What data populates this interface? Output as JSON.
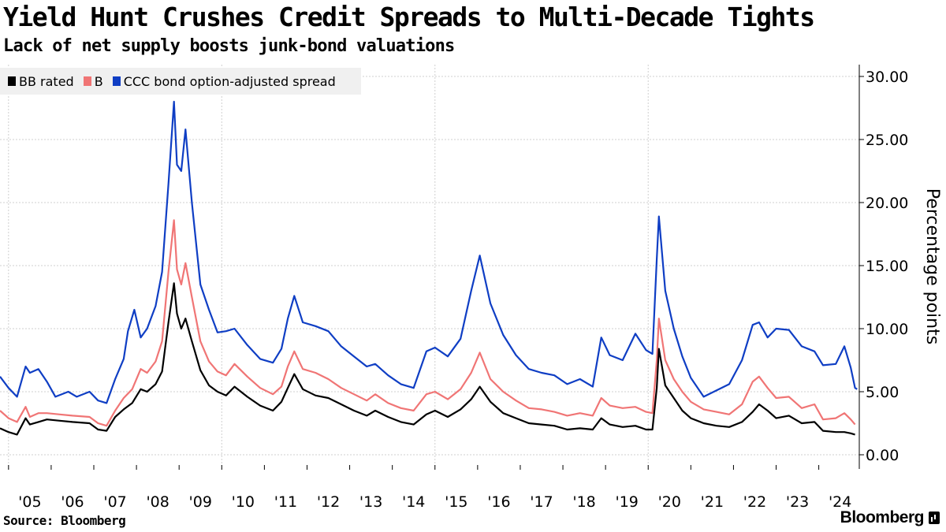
{
  "header": {
    "title": "Yield Hunt Crushes Credit Spreads to Multi-Decade Tights",
    "subtitle": "Lack of net supply boosts junk-bond valuations"
  },
  "footer": {
    "source": "Source: Bloomberg",
    "logo": "Bloomberg"
  },
  "chart_data": {
    "type": "line",
    "title": "Yield Hunt Crushes Credit Spreads to Multi-Decade Tights",
    "subtitle": "Lack of net supply boosts junk-bond valuations",
    "ylabel": "Percentage points",
    "xlabel": "",
    "ylim": [
      0,
      30
    ],
    "xlim": [
      2004.8,
      2024.95
    ],
    "yticks": [
      0,
      5,
      10,
      15,
      20,
      25,
      30
    ],
    "ytick_labels": [
      "0.00",
      "5.00",
      "10.00",
      "15.00",
      "20.00",
      "25.00",
      "30.00"
    ],
    "xtick_labels": [
      "'05",
      "'06",
      "'07",
      "'08",
      "'09",
      "'10",
      "'11",
      "'12",
      "'13",
      "'14",
      "'15",
      "'16",
      "'17",
      "'18",
      "'19",
      "'20",
      "'21",
      "'22",
      "'23",
      "'24"
    ],
    "grid": true,
    "legend_position": "top-left",
    "series": [
      {
        "name": "BB rated",
        "color": "#000000",
        "points": [
          [
            2004.8,
            2.1
          ],
          [
            2005.0,
            1.8
          ],
          [
            2005.2,
            1.6
          ],
          [
            2005.4,
            2.9
          ],
          [
            2005.5,
            2.4
          ],
          [
            2005.7,
            2.6
          ],
          [
            2005.9,
            2.8
          ],
          [
            2006.2,
            2.7
          ],
          [
            2006.5,
            2.6
          ],
          [
            2006.9,
            2.5
          ],
          [
            2007.1,
            2.0
          ],
          [
            2007.3,
            1.9
          ],
          [
            2007.5,
            3.0
          ],
          [
            2007.7,
            3.6
          ],
          [
            2007.9,
            4.1
          ],
          [
            2008.1,
            5.2
          ],
          [
            2008.25,
            5.0
          ],
          [
            2008.45,
            5.6
          ],
          [
            2008.6,
            6.6
          ],
          [
            2008.75,
            10.5
          ],
          [
            2008.88,
            13.6
          ],
          [
            2008.95,
            11.2
          ],
          [
            2009.05,
            10.0
          ],
          [
            2009.15,
            10.8
          ],
          [
            2009.3,
            9.0
          ],
          [
            2009.5,
            6.7
          ],
          [
            2009.7,
            5.5
          ],
          [
            2009.9,
            5.0
          ],
          [
            2010.1,
            4.7
          ],
          [
            2010.3,
            5.4
          ],
          [
            2010.6,
            4.6
          ],
          [
            2010.9,
            3.9
          ],
          [
            2011.2,
            3.5
          ],
          [
            2011.4,
            4.2
          ],
          [
            2011.55,
            5.3
          ],
          [
            2011.7,
            6.4
          ],
          [
            2011.9,
            5.2
          ],
          [
            2012.2,
            4.7
          ],
          [
            2012.5,
            4.5
          ],
          [
            2012.8,
            4.0
          ],
          [
            2013.1,
            3.5
          ],
          [
            2013.4,
            3.1
          ],
          [
            2013.6,
            3.5
          ],
          [
            2013.9,
            3.0
          ],
          [
            2014.2,
            2.6
          ],
          [
            2014.5,
            2.4
          ],
          [
            2014.8,
            3.2
          ],
          [
            2015.0,
            3.5
          ],
          [
            2015.3,
            3.0
          ],
          [
            2015.6,
            3.6
          ],
          [
            2015.85,
            4.4
          ],
          [
            2016.05,
            5.4
          ],
          [
            2016.3,
            4.2
          ],
          [
            2016.6,
            3.3
          ],
          [
            2016.9,
            2.9
          ],
          [
            2017.2,
            2.5
          ],
          [
            2017.5,
            2.4
          ],
          [
            2017.8,
            2.3
          ],
          [
            2018.1,
            2.0
          ],
          [
            2018.4,
            2.1
          ],
          [
            2018.7,
            2.0
          ],
          [
            2018.9,
            2.9
          ],
          [
            2019.1,
            2.4
          ],
          [
            2019.4,
            2.2
          ],
          [
            2019.7,
            2.3
          ],
          [
            2019.95,
            2.0
          ],
          [
            2020.1,
            2.0
          ],
          [
            2020.2,
            5.3
          ],
          [
            2020.25,
            8.4
          ],
          [
            2020.4,
            5.5
          ],
          [
            2020.6,
            4.5
          ],
          [
            2020.8,
            3.5
          ],
          [
            2021.0,
            2.9
          ],
          [
            2021.3,
            2.5
          ],
          [
            2021.6,
            2.3
          ],
          [
            2021.9,
            2.2
          ],
          [
            2022.2,
            2.6
          ],
          [
            2022.45,
            3.4
          ],
          [
            2022.6,
            4.0
          ],
          [
            2022.8,
            3.5
          ],
          [
            2023.0,
            2.9
          ],
          [
            2023.3,
            3.1
          ],
          [
            2023.6,
            2.5
          ],
          [
            2023.9,
            2.6
          ],
          [
            2024.1,
            1.9
          ],
          [
            2024.4,
            1.8
          ],
          [
            2024.6,
            1.8
          ],
          [
            2024.75,
            1.7
          ],
          [
            2024.85,
            1.6
          ]
        ]
      },
      {
        "name": "B",
        "color": "#f07575",
        "points": [
          [
            2004.8,
            3.5
          ],
          [
            2005.0,
            2.9
          ],
          [
            2005.2,
            2.6
          ],
          [
            2005.4,
            3.8
          ],
          [
            2005.5,
            3.0
          ],
          [
            2005.7,
            3.3
          ],
          [
            2005.9,
            3.3
          ],
          [
            2006.2,
            3.2
          ],
          [
            2006.5,
            3.1
          ],
          [
            2006.9,
            3.0
          ],
          [
            2007.1,
            2.5
          ],
          [
            2007.3,
            2.3
          ],
          [
            2007.5,
            3.5
          ],
          [
            2007.7,
            4.5
          ],
          [
            2007.9,
            5.2
          ],
          [
            2008.1,
            6.8
          ],
          [
            2008.25,
            6.5
          ],
          [
            2008.45,
            7.4
          ],
          [
            2008.6,
            9.0
          ],
          [
            2008.75,
            14.5
          ],
          [
            2008.88,
            18.6
          ],
          [
            2008.95,
            14.7
          ],
          [
            2009.05,
            13.5
          ],
          [
            2009.15,
            15.2
          ],
          [
            2009.3,
            12.5
          ],
          [
            2009.5,
            9.0
          ],
          [
            2009.7,
            7.4
          ],
          [
            2009.9,
            6.6
          ],
          [
            2010.1,
            6.3
          ],
          [
            2010.3,
            7.2
          ],
          [
            2010.6,
            6.2
          ],
          [
            2010.9,
            5.3
          ],
          [
            2011.2,
            4.8
          ],
          [
            2011.4,
            5.4
          ],
          [
            2011.55,
            7.0
          ],
          [
            2011.7,
            8.2
          ],
          [
            2011.9,
            6.8
          ],
          [
            2012.2,
            6.5
          ],
          [
            2012.5,
            6.0
          ],
          [
            2012.8,
            5.3
          ],
          [
            2013.1,
            4.8
          ],
          [
            2013.4,
            4.3
          ],
          [
            2013.6,
            4.8
          ],
          [
            2013.9,
            4.1
          ],
          [
            2014.2,
            3.7
          ],
          [
            2014.5,
            3.5
          ],
          [
            2014.8,
            4.8
          ],
          [
            2015.0,
            5.0
          ],
          [
            2015.3,
            4.4
          ],
          [
            2015.6,
            5.2
          ],
          [
            2015.85,
            6.5
          ],
          [
            2016.05,
            8.1
          ],
          [
            2016.3,
            6.0
          ],
          [
            2016.6,
            5.0
          ],
          [
            2016.9,
            4.3
          ],
          [
            2017.2,
            3.7
          ],
          [
            2017.5,
            3.6
          ],
          [
            2017.8,
            3.4
          ],
          [
            2018.1,
            3.1
          ],
          [
            2018.4,
            3.3
          ],
          [
            2018.7,
            3.1
          ],
          [
            2018.9,
            4.5
          ],
          [
            2019.1,
            3.9
          ],
          [
            2019.4,
            3.7
          ],
          [
            2019.7,
            3.8
          ],
          [
            2019.95,
            3.4
          ],
          [
            2020.1,
            3.3
          ],
          [
            2020.2,
            7.5
          ],
          [
            2020.25,
            10.8
          ],
          [
            2020.4,
            7.5
          ],
          [
            2020.6,
            6.0
          ],
          [
            2020.8,
            5.0
          ],
          [
            2021.0,
            4.2
          ],
          [
            2021.3,
            3.6
          ],
          [
            2021.6,
            3.4
          ],
          [
            2021.9,
            3.2
          ],
          [
            2022.2,
            4.0
          ],
          [
            2022.45,
            5.8
          ],
          [
            2022.6,
            6.2
          ],
          [
            2022.8,
            5.3
          ],
          [
            2023.0,
            4.5
          ],
          [
            2023.3,
            4.6
          ],
          [
            2023.6,
            3.7
          ],
          [
            2023.9,
            4.0
          ],
          [
            2024.1,
            2.8
          ],
          [
            2024.4,
            2.9
          ],
          [
            2024.6,
            3.3
          ],
          [
            2024.75,
            2.8
          ],
          [
            2024.85,
            2.4
          ]
        ]
      },
      {
        "name": "CCC bond option-adjusted spread",
        "color": "#0f3ec4",
        "points": [
          [
            2004.8,
            6.2
          ],
          [
            2005.0,
            5.3
          ],
          [
            2005.2,
            4.6
          ],
          [
            2005.4,
            7.0
          ],
          [
            2005.5,
            6.5
          ],
          [
            2005.7,
            6.8
          ],
          [
            2005.9,
            5.8
          ],
          [
            2006.1,
            4.6
          ],
          [
            2006.4,
            5.0
          ],
          [
            2006.6,
            4.6
          ],
          [
            2006.9,
            5.0
          ],
          [
            2007.1,
            4.3
          ],
          [
            2007.3,
            4.1
          ],
          [
            2007.5,
            6.0
          ],
          [
            2007.7,
            7.6
          ],
          [
            2007.8,
            9.8
          ],
          [
            2007.95,
            11.5
          ],
          [
            2008.1,
            9.3
          ],
          [
            2008.25,
            10.0
          ],
          [
            2008.45,
            11.8
          ],
          [
            2008.6,
            14.5
          ],
          [
            2008.75,
            21.5
          ],
          [
            2008.88,
            28.0
          ],
          [
            2008.95,
            23.0
          ],
          [
            2009.05,
            22.5
          ],
          [
            2009.15,
            25.8
          ],
          [
            2009.3,
            20.0
          ],
          [
            2009.5,
            13.5
          ],
          [
            2009.7,
            11.5
          ],
          [
            2009.9,
            9.7
          ],
          [
            2010.1,
            9.8
          ],
          [
            2010.3,
            10.0
          ],
          [
            2010.6,
            8.7
          ],
          [
            2010.9,
            7.6
          ],
          [
            2011.2,
            7.3
          ],
          [
            2011.4,
            8.4
          ],
          [
            2011.55,
            10.8
          ],
          [
            2011.7,
            12.6
          ],
          [
            2011.9,
            10.5
          ],
          [
            2012.2,
            10.2
          ],
          [
            2012.5,
            9.8
          ],
          [
            2012.8,
            8.6
          ],
          [
            2013.1,
            7.8
          ],
          [
            2013.4,
            7.0
          ],
          [
            2013.6,
            7.2
          ],
          [
            2013.9,
            6.3
          ],
          [
            2014.2,
            5.6
          ],
          [
            2014.5,
            5.3
          ],
          [
            2014.8,
            8.2
          ],
          [
            2015.0,
            8.5
          ],
          [
            2015.3,
            7.8
          ],
          [
            2015.6,
            9.2
          ],
          [
            2015.85,
            13.0
          ],
          [
            2016.05,
            15.8
          ],
          [
            2016.3,
            12.0
          ],
          [
            2016.6,
            9.5
          ],
          [
            2016.9,
            7.9
          ],
          [
            2017.2,
            6.8
          ],
          [
            2017.5,
            6.5
          ],
          [
            2017.8,
            6.3
          ],
          [
            2018.1,
            5.6
          ],
          [
            2018.4,
            6.0
          ],
          [
            2018.7,
            5.4
          ],
          [
            2018.9,
            9.3
          ],
          [
            2019.1,
            7.9
          ],
          [
            2019.4,
            7.5
          ],
          [
            2019.7,
            9.6
          ],
          [
            2019.95,
            8.3
          ],
          [
            2020.1,
            8.0
          ],
          [
            2020.2,
            15.5
          ],
          [
            2020.25,
            18.9
          ],
          [
            2020.4,
            13.0
          ],
          [
            2020.6,
            10.0
          ],
          [
            2020.8,
            7.8
          ],
          [
            2021.0,
            6.1
          ],
          [
            2021.3,
            4.6
          ],
          [
            2021.6,
            5.1
          ],
          [
            2021.9,
            5.6
          ],
          [
            2022.2,
            7.5
          ],
          [
            2022.45,
            10.3
          ],
          [
            2022.6,
            10.5
          ],
          [
            2022.8,
            9.3
          ],
          [
            2023.0,
            10.0
          ],
          [
            2023.3,
            9.9
          ],
          [
            2023.6,
            8.6
          ],
          [
            2023.9,
            8.2
          ],
          [
            2024.1,
            7.1
          ],
          [
            2024.4,
            7.2
          ],
          [
            2024.6,
            8.6
          ],
          [
            2024.75,
            6.9
          ],
          [
            2024.85,
            5.3
          ],
          [
            2024.9,
            5.2
          ]
        ]
      }
    ]
  }
}
